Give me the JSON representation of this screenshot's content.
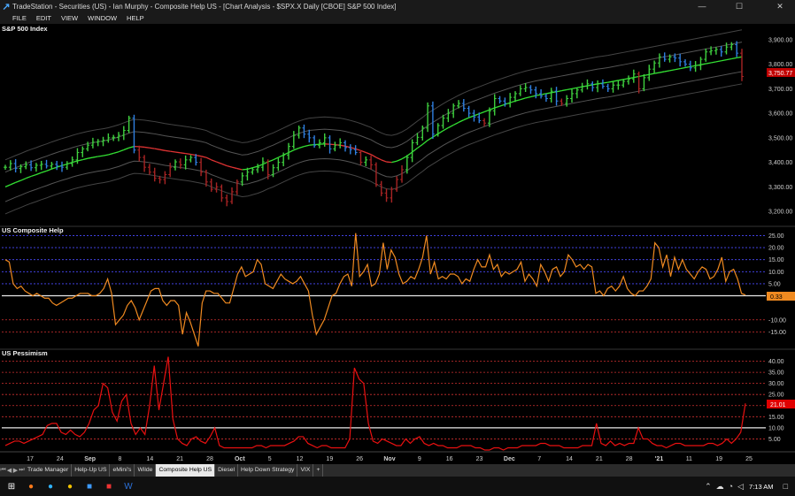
{
  "window": {
    "title": "TradeStation - Securities (US) - Ian Murphy - Composite Help US - [Chart Analysis - $SPX.X Daily [CBOE] S&P 500 Index]",
    "minimize": "—",
    "maximize": "☐",
    "close": "✕"
  },
  "menu": [
    "FILE",
    "EDIT",
    "VIEW",
    "WINDOW",
    "HELP"
  ],
  "panes": {
    "price": {
      "label": "S&P 500 Index",
      "last": "3,750.77",
      "last_color": "#c00000"
    },
    "composite": {
      "label": "US Composite Help",
      "last": "0.33",
      "last_color": "#f08a20"
    },
    "pessimism": {
      "label": "US Pessimism",
      "last": "21.01",
      "last_color": "#e00000"
    }
  },
  "chart_data": [
    {
      "type": "bar",
      "title": "S&P 500 Index",
      "ylim": [
        3150,
        3950
      ],
      "yticks": [
        3200,
        3300,
        3400,
        3500,
        3600,
        3700,
        3800,
        3900
      ],
      "ytick_labels": [
        "3,200.00",
        "3,300.00",
        "3,400.00",
        "3,500.00",
        "3,600.00",
        "3,700.00",
        "3,800.00",
        "3,900.00"
      ],
      "close": [
        3380,
        3395,
        3375,
        3382,
        3390,
        3378,
        3388,
        3392,
        3385,
        3392,
        3385,
        3380,
        3395,
        3410,
        3440,
        3455,
        3470,
        3482,
        3485,
        3490,
        3500,
        3502,
        3510,
        3530,
        3580,
        3450,
        3420,
        3380,
        3360,
        3335,
        3330,
        3350,
        3380,
        3402,
        3390,
        3410,
        3420,
        3400,
        3360,
        3320,
        3290,
        3300,
        3255,
        3240,
        3280,
        3320,
        3345,
        3360,
        3370,
        3380,
        3402,
        3350,
        3378,
        3400,
        3430,
        3465,
        3510,
        3540,
        3515,
        3500,
        3470,
        3480,
        3500,
        3455,
        3470,
        3480,
        3460,
        3452,
        3440,
        3400,
        3410,
        3390,
        3310,
        3275,
        3255,
        3290,
        3330,
        3370,
        3420,
        3480,
        3502,
        3540,
        3630,
        3515,
        3550,
        3580,
        3600,
        3630,
        3640,
        3620,
        3600,
        3585,
        3570,
        3560,
        3610,
        3660,
        3650,
        3640,
        3665,
        3680,
        3700,
        3705,
        3695,
        3680,
        3670,
        3660,
        3690,
        3650,
        3640,
        3660,
        3680,
        3695,
        3710,
        3720,
        3705,
        3720,
        3710,
        3700,
        3715,
        3715,
        3730,
        3740,
        3760,
        3700,
        3745,
        3780,
        3805,
        3830,
        3820,
        3830,
        3825,
        3810,
        3800,
        3785,
        3795,
        3820,
        3850,
        3855,
        3860,
        3850,
        3870,
        3880,
        3845,
        3750
      ],
      "ma": [
        3300,
        3309,
        3318,
        3326,
        3335,
        3343,
        3350,
        3358,
        3365,
        3373,
        3380,
        3387,
        3393,
        3400,
        3406,
        3411,
        3416,
        3420,
        3424,
        3427,
        3431,
        3437,
        3443,
        3451,
        3459,
        3465,
        3464,
        3462,
        3459,
        3456,
        3452,
        3448,
        3445,
        3442,
        3439,
        3436,
        3433,
        3429,
        3425,
        3420,
        3410,
        3402,
        3394,
        3386,
        3380,
        3375,
        3370,
        3372,
        3378,
        3384,
        3392,
        3402,
        3410,
        3420,
        3430,
        3440,
        3450,
        3458,
        3465,
        3470,
        3472,
        3474,
        3475,
        3474,
        3472,
        3470,
        3466,
        3461,
        3455,
        3448,
        3440,
        3432,
        3420,
        3410,
        3402,
        3400,
        3405,
        3414,
        3426,
        3442,
        3458,
        3473,
        3490,
        3503,
        3516,
        3529,
        3541,
        3552,
        3563,
        3573,
        3582,
        3590,
        3598,
        3606,
        3614,
        3622,
        3629,
        3636,
        3643,
        3650,
        3656,
        3662,
        3667,
        3672,
        3676,
        3680,
        3684,
        3688,
        3692,
        3696,
        3700,
        3704,
        3708,
        3712,
        3716,
        3720,
        3723,
        3726,
        3730,
        3734,
        3738,
        3742,
        3746,
        3750,
        3754,
        3758,
        3762,
        3766,
        3770,
        3774,
        3778,
        3782,
        3786,
        3790,
        3794,
        3798,
        3802,
        3806,
        3810,
        3814,
        3818,
        3822,
        3826,
        3830
      ],
      "trend_colors": [
        "green",
        "red"
      ]
    },
    {
      "type": "line",
      "title": "US Composite Help",
      "ylim": [
        -20,
        27
      ],
      "ytick_labels": [
        "25.00",
        "20.00",
        "15.00",
        "10.00",
        "5.00",
        "-10.00",
        "-15.00"
      ],
      "yticks": [
        25,
        20,
        15,
        10,
        5,
        -10,
        -15
      ],
      "values": [
        15,
        14,
        5,
        3,
        4,
        2,
        1,
        0,
        1,
        0,
        -1,
        -1,
        -3,
        -4,
        -3,
        -2,
        -1,
        -1,
        0,
        1,
        1,
        1,
        0,
        0,
        1,
        3,
        7,
        1,
        -12,
        -10,
        -8,
        -4,
        -2,
        -5,
        -10,
        -6,
        -2,
        2,
        3,
        3,
        -2,
        -4,
        -2,
        -2,
        -4,
        -16,
        -7,
        -11,
        -16,
        -21,
        -3,
        2,
        2,
        1,
        1,
        -1,
        -3,
        -3,
        3,
        9,
        12,
        8,
        9,
        10,
        15,
        13,
        5,
        4,
        3,
        6,
        9,
        7,
        6,
        5,
        6,
        8,
        5,
        2,
        -8,
        -16,
        -13,
        -10,
        -5,
        0,
        1,
        5,
        8,
        9,
        4,
        26,
        8,
        10,
        13,
        4,
        5,
        9,
        22,
        11,
        19,
        16,
        9,
        5,
        6,
        8,
        7,
        11,
        16,
        25,
        9,
        14,
        7,
        8,
        7,
        9,
        9,
        8,
        5,
        7,
        6,
        11,
        15,
        12,
        12,
        17,
        11,
        13,
        8,
        10,
        9,
        10,
        11,
        14,
        6,
        9,
        7,
        4,
        13,
        10,
        6,
        11,
        12,
        8,
        10,
        17,
        15,
        12,
        13,
        11,
        13,
        12,
        1,
        2,
        0,
        3,
        4,
        2,
        4,
        8,
        3,
        1,
        0,
        2,
        2,
        4,
        7,
        22,
        20,
        12,
        17,
        8,
        16,
        11,
        15,
        11,
        9,
        7,
        10,
        12,
        11,
        7,
        8,
        11,
        16,
        6,
        10,
        11,
        7,
        1,
        0.33
      ],
      "reference_line": 0,
      "series": [
        {
          "name": "US Composite Help",
          "color": "#f08a20"
        }
      ]
    },
    {
      "type": "line",
      "title": "US Pessimism",
      "ylim": [
        0,
        43
      ],
      "yticks": [
        5,
        10,
        15,
        20,
        25,
        30,
        35,
        40
      ],
      "ytick_labels": [
        "5.00",
        "10.00",
        "15.00",
        "20.00",
        "25.00",
        "30.00",
        "35.00",
        "40.00"
      ],
      "values": [
        2,
        3,
        4,
        4,
        3,
        4,
        5,
        6,
        7,
        11,
        12,
        12,
        8,
        7,
        9,
        7,
        6,
        8,
        12,
        18,
        20,
        30,
        28,
        17,
        13,
        22,
        25,
        12,
        7,
        10,
        7,
        20,
        38,
        18,
        30,
        42,
        14,
        5,
        3,
        2,
        5,
        6,
        4,
        3,
        6,
        10,
        2,
        1,
        1,
        1,
        1,
        1,
        1,
        1,
        2,
        2,
        1,
        2,
        2,
        2,
        2,
        3,
        4,
        6,
        6,
        3,
        2,
        1,
        2,
        2,
        1,
        1,
        1,
        1,
        5,
        37,
        32,
        30,
        12,
        4,
        3,
        5,
        4,
        3,
        2,
        2,
        5,
        3,
        5,
        6,
        3,
        2,
        3,
        2,
        2,
        1,
        1,
        1,
        2,
        2,
        2,
        1,
        1,
        0,
        0,
        1,
        1,
        0,
        1,
        1,
        1,
        2,
        2,
        2,
        2,
        3,
        3,
        2,
        2,
        2,
        1,
        1,
        1,
        1,
        2,
        2,
        2,
        12,
        3,
        2,
        4,
        2,
        3,
        2,
        3,
        3,
        10,
        5,
        5,
        3,
        2,
        2,
        1,
        2,
        3,
        3,
        2,
        2,
        2,
        2,
        2,
        3,
        3,
        2,
        3,
        5,
        3,
        5,
        8,
        21
      ],
      "reference_line": 10,
      "series": [
        {
          "name": "US Pessimism",
          "color": "#e81010"
        }
      ]
    }
  ],
  "x_axis": {
    "labels": [
      "17",
      "24",
      "Sep",
      "8",
      "14",
      "21",
      "28",
      "Oct",
      "5",
      "12",
      "19",
      "26",
      "Nov",
      "9",
      "16",
      "23",
      "Dec",
      "7",
      "14",
      "21",
      "28",
      "'21",
      "11",
      "19",
      "25"
    ]
  },
  "tabs": {
    "items": [
      "Trade Manager",
      "Help-Up US",
      "eMini's",
      "Wilde",
      "Composite Help US",
      "Diesel",
      "Help Down Strategy",
      "VIX",
      "+"
    ],
    "active_index": 4
  },
  "taskbar": {
    "clock": "7:13 AM",
    "apps": [
      "windows-start-icon",
      "firefox-icon",
      "edge-icon",
      "chrome-icon",
      "tradestation-icon",
      "files-icon",
      "word-icon"
    ]
  }
}
